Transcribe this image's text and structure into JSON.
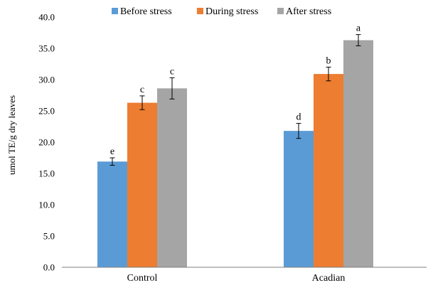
{
  "chart_data": {
    "type": "bar",
    "title": "",
    "xlabel": "",
    "ylabel": "umol TE/g dry leaves",
    "ylim": [
      0,
      40
    ],
    "ytick_step": 5,
    "ytick_labels": [
      "0.0",
      "5.0",
      "10.0",
      "15.0",
      "20.0",
      "25.0",
      "30.0",
      "35.0",
      "40.0"
    ],
    "grid": false,
    "legend_position": "top",
    "categories": [
      "Control",
      "Acadian"
    ],
    "series": [
      {
        "name": "Before stress",
        "color": "#5b9bd5",
        "values": [
          16.9,
          21.8
        ],
        "errors": [
          0.6,
          1.2
        ],
        "labels": [
          "e",
          "d"
        ]
      },
      {
        "name": "During stress",
        "color": "#ed7d31",
        "values": [
          26.3,
          30.9
        ],
        "errors": [
          1.1,
          1.1
        ],
        "labels": [
          "c",
          "b"
        ]
      },
      {
        "name": "After stress",
        "color": "#a5a5a5",
        "values": [
          28.6,
          36.3
        ],
        "errors": [
          1.7,
          0.9
        ],
        "labels": [
          "c",
          "a"
        ]
      }
    ]
  }
}
